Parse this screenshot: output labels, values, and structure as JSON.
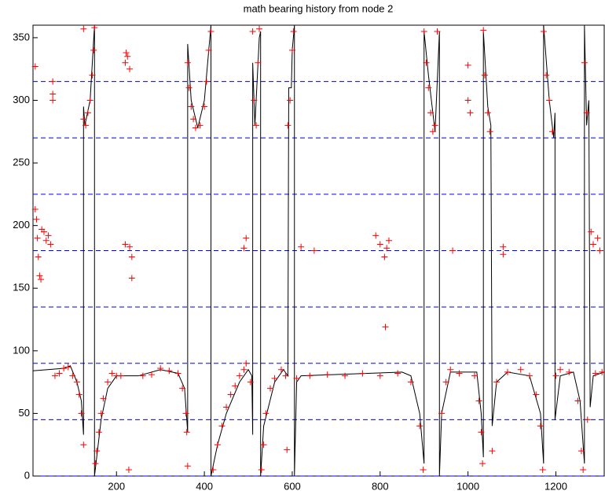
{
  "chart_data": {
    "type": "combo",
    "title": "math bearing history from node 2",
    "xlim": [
      10,
      1310
    ],
    "ylim": [
      0,
      360
    ],
    "xticks": [
      200,
      400,
      600,
      800,
      1000,
      1200
    ],
    "yticks": [
      0,
      50,
      100,
      150,
      200,
      250,
      300,
      350
    ],
    "hlines": {
      "color": "#0000ff",
      "dashed": true,
      "values": [
        0,
        45,
        90,
        135,
        180,
        225,
        270,
        315
      ]
    },
    "series": [
      {
        "type": "line",
        "color": "#000000",
        "x": [
          10,
          80,
          95,
          110,
          120,
          125,
          125,
          128,
          140,
          150,
          150,
          155,
          165,
          180,
          200,
          250,
          300,
          340,
          355,
          362,
          362,
          370,
          385,
          400,
          415,
          415,
          430,
          450,
          480,
          500,
          508,
          510,
          510,
          515,
          525,
          528,
          528,
          535,
          560,
          580,
          590,
          592,
          598,
          600,
          605,
          605,
          610,
          620,
          850,
          870,
          890,
          900,
          900,
          910,
          925,
          935,
          935,
          940,
          960,
          1020,
          1030,
          1035,
          1035,
          1045,
          1052,
          1055,
          1065,
          1090,
          1140,
          1165,
          1172,
          1172,
          1185,
          1195,
          1198,
          1198,
          1210,
          1240,
          1255,
          1265,
          1265,
          1270,
          1275,
          1278,
          1285,
          1310
        ],
        "values": [
          84,
          86,
          88,
          75,
          60,
          33,
          295,
          280,
          300,
          360,
          0,
          15,
          45,
          70,
          80,
          80,
          85,
          82,
          70,
          35,
          345,
          300,
          278,
          300,
          360,
          0,
          25,
          50,
          75,
          85,
          80,
          33,
          330,
          280,
          350,
          355,
          0,
          40,
          75,
          85,
          80,
          310,
          310,
          340,
          360,
          0,
          75,
          80,
          83,
          80,
          50,
          10,
          355,
          320,
          275,
          355,
          0,
          50,
          83,
          83,
          50,
          15,
          355,
          295,
          280,
          40,
          75,
          83,
          80,
          50,
          10,
          360,
          300,
          270,
          290,
          45,
          80,
          83,
          60,
          10,
          360,
          280,
          300,
          55,
          80,
          83
        ]
      },
      {
        "type": "scatter",
        "marker": "+",
        "color": "#ff0000",
        "x": [
          15,
          18,
          20,
          22,
          25,
          28,
          30,
          35,
          40,
          45,
          50,
          55,
          55,
          15,
          55,
          60,
          70,
          80,
          90,
          100,
          110,
          115,
          120,
          125,
          125,
          130,
          135,
          140,
          145,
          148,
          150,
          125,
          152,
          155,
          160,
          165,
          170,
          180,
          190,
          200,
          210,
          220,
          222,
          225,
          230,
          220,
          230,
          235,
          235,
          228,
          260,
          280,
          300,
          320,
          340,
          350,
          358,
          360,
          362,
          362,
          365,
          370,
          375,
          380,
          390,
          400,
          405,
          410,
          415,
          420,
          430,
          440,
          450,
          460,
          470,
          480,
          490,
          495,
          495,
          490,
          505,
          510,
          513,
          518,
          522,
          525,
          530,
          535,
          540,
          550,
          560,
          575,
          585,
          588,
          590,
          595,
          600,
          603,
          620,
          650,
          610,
          640,
          680,
          720,
          760,
          790,
          800,
          810,
          812,
          820,
          815,
          800,
          840,
          870,
          890,
          898,
          900,
          905,
          910,
          915,
          920,
          925,
          930,
          940,
          950,
          960,
          965,
          980,
          1000,
          1000,
          1005,
          1015,
          1025,
          1030,
          1033,
          1035,
          1038,
          1045,
          1050,
          1055,
          1065,
          1080,
          1080,
          1090,
          1120,
          1140,
          1155,
          1165,
          1170,
          1172,
          1178,
          1185,
          1192,
          1200,
          1210,
          1230,
          1250,
          1258,
          1262,
          1265,
          1270,
          1272,
          1280,
          1285,
          1295,
          1300,
          1290,
          1305
        ],
        "values": [
          213,
          205,
          190,
          175,
          160,
          157,
          197,
          195,
          188,
          192,
          185,
          300,
          305,
          327,
          315,
          80,
          82,
          86,
          87,
          80,
          75,
          65,
          50,
          25,
          285,
          280,
          290,
          300,
          320,
          340,
          358,
          357,
          10,
          20,
          35,
          50,
          62,
          75,
          82,
          80,
          80,
          330,
          338,
          335,
          325,
          185,
          183,
          175,
          158,
          5,
          80,
          81,
          86,
          84,
          82,
          70,
          50,
          35,
          8,
          330,
          310,
          295,
          285,
          278,
          280,
          295,
          315,
          340,
          355,
          5,
          25,
          40,
          55,
          65,
          72,
          80,
          85,
          90,
          190,
          182,
          75,
          355,
          300,
          280,
          330,
          357,
          5,
          25,
          50,
          70,
          78,
          85,
          80,
          21,
          280,
          300,
          340,
          355,
          183,
          180,
          78,
          80,
          81,
          80,
          82,
          192,
          185,
          175,
          119,
          188,
          182,
          80,
          82,
          75,
          40,
          5,
          355,
          330,
          310,
          290,
          275,
          280,
          355,
          50,
          75,
          85,
          180,
          82,
          328,
          300,
          290,
          80,
          60,
          35,
          10,
          356,
          320,
          290,
          275,
          20,
          75,
          183,
          177,
          83,
          85,
          80,
          65,
          40,
          5,
          355,
          320,
          300,
          275,
          80,
          85,
          83,
          60,
          20,
          5,
          330,
          290,
          45,
          195,
          185,
          190,
          180,
          82,
          83
        ]
      }
    ]
  }
}
